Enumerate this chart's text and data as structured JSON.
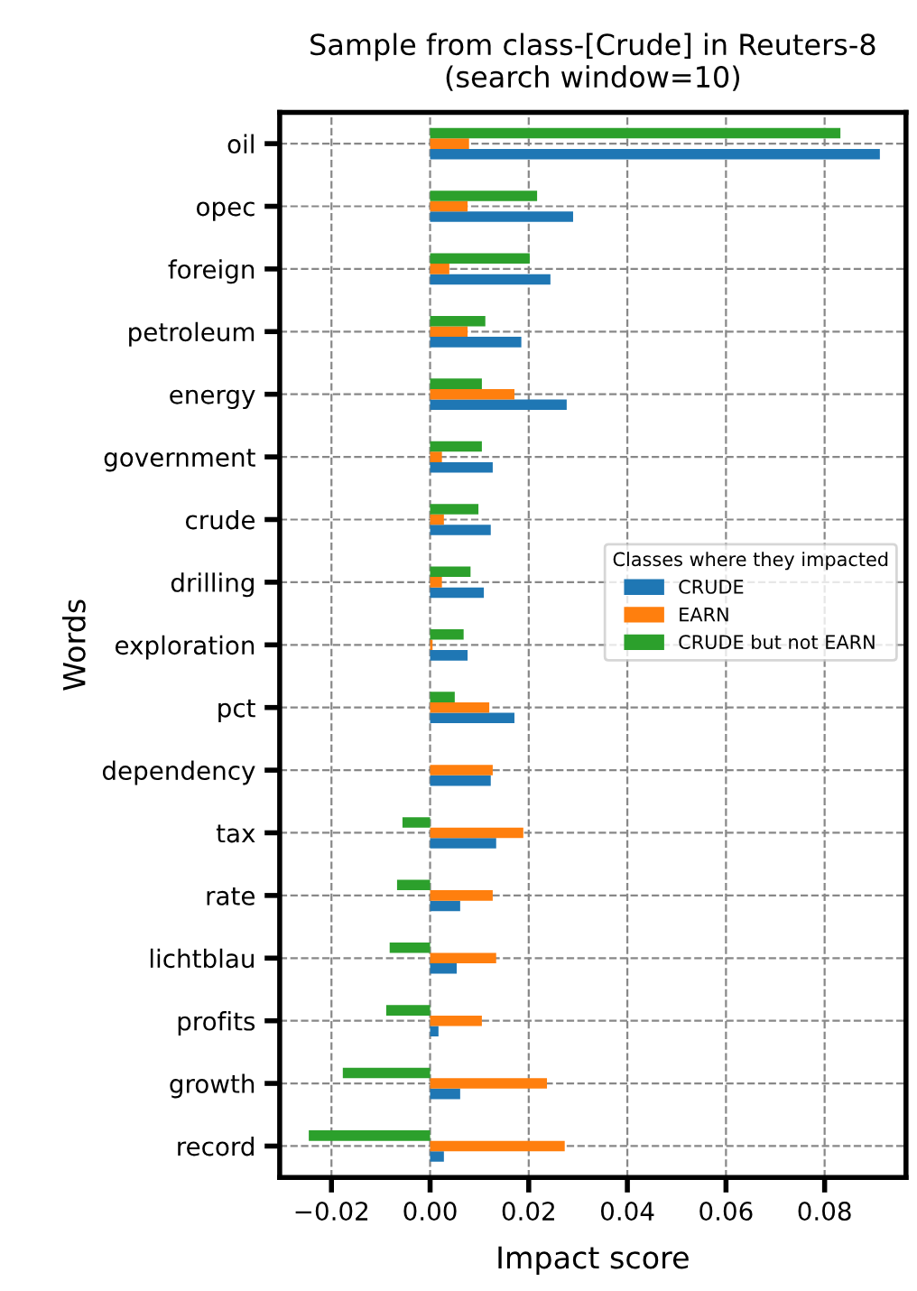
{
  "chart_data": {
    "type": "bar",
    "orientation": "horizontal",
    "title": "Sample from class-[Crude] in Reuters-8\n(search window=10)",
    "xlabel": "Impact score",
    "ylabel": "Words",
    "categories": [
      "oil",
      "opec",
      "foreign",
      "petroleum",
      "energy",
      "government",
      "crude",
      "drilling",
      "exploration",
      "pct",
      "dependency",
      "tax",
      "rate",
      "lichtblau",
      "profits",
      "growth",
      "record"
    ],
    "series": [
      {
        "name": "CRUDE",
        "color": "#1f77b4",
        "values": [
          0.0912,
          0.029,
          0.0244,
          0.0185,
          0.0277,
          0.0127,
          0.0123,
          0.0109,
          0.0076,
          0.0171,
          0.0123,
          0.0134,
          0.0061,
          0.0054,
          0.0017,
          0.0061,
          0.0028
        ]
      },
      {
        "name": "EARN",
        "color": "#ff7f0e",
        "values": [
          0.0079,
          0.0076,
          0.0039,
          0.0076,
          0.0171,
          0.0024,
          0.0028,
          0.0024,
          0.0005,
          0.012,
          0.0127,
          0.0189,
          0.0127,
          0.0134,
          0.0105,
          0.0237,
          0.0273
        ]
      },
      {
        "name": "CRUDE but not EARN",
        "color": "#2ca02c",
        "values": [
          0.0832,
          0.0217,
          0.0202,
          0.0112,
          0.0105,
          0.0105,
          0.0098,
          0.0082,
          0.0068,
          0.005,
          null,
          -0.0056,
          -0.0067,
          -0.0082,
          -0.0089,
          -0.0177,
          -0.0246
        ]
      }
    ],
    "xlim": [
      -0.0305,
      0.0965
    ],
    "xticks": [
      {
        "value": -0.02,
        "label": "−0.02"
      },
      {
        "value": 0,
        "label": "0.00"
      },
      {
        "value": 0.02,
        "label": "0.02"
      },
      {
        "value": 0.04,
        "label": "0.04"
      },
      {
        "value": 0.06,
        "label": "0.06"
      },
      {
        "value": 0.08,
        "label": "0.08"
      }
    ],
    "grid": true,
    "legend": "right",
    "legend_title": "Classes where they impacted"
  }
}
